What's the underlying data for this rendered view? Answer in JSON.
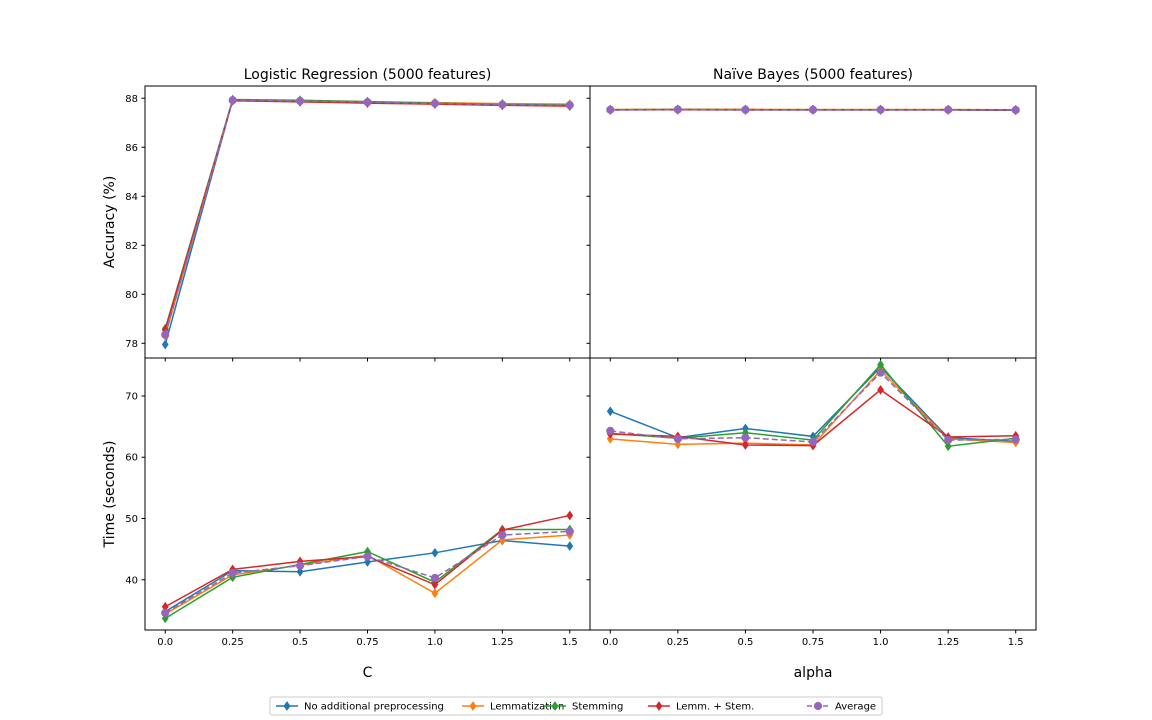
{
  "chart_data": {
    "type": "line",
    "legend": {
      "placement": "bottom-center",
      "entries": [
        "No additional preprocessing",
        "Lemmatization",
        "Stemming",
        "Lemm. + Stem.",
        "Average"
      ]
    },
    "series_styles": [
      {
        "name": "No additional preprocessing",
        "color": "#1f77b4",
        "marker": "diamond",
        "dash": false
      },
      {
        "name": "Lemmatization",
        "color": "#ff7f0e",
        "marker": "diamond",
        "dash": false
      },
      {
        "name": "Stemming",
        "color": "#2ca02c",
        "marker": "diamond",
        "dash": false
      },
      {
        "name": "Lemm. + Stem.",
        "color": "#d62728",
        "marker": "diamond",
        "dash": false
      },
      {
        "name": "Average",
        "color": "#9467bd",
        "marker": "circle",
        "dash": true
      }
    ],
    "panels": [
      {
        "id": "lr-accuracy",
        "title": "Logistic Regression (5000 features)",
        "ylabel": "Accuracy (%)",
        "xlabel": "",
        "ylim": [
          77.4,
          88.5
        ],
        "yticks": [
          78,
          80,
          82,
          84,
          86,
          88
        ],
        "x": [
          0.0,
          0.25,
          0.5,
          0.75,
          1.0,
          1.25,
          1.5
        ],
        "series": [
          {
            "name": "No additional preprocessing",
            "values": [
              77.95,
              87.92,
              87.88,
              87.83,
              87.78,
              87.73,
              87.72
            ]
          },
          {
            "name": "Lemmatization",
            "values": [
              78.3,
              87.93,
              87.9,
              87.86,
              87.82,
              87.78,
              87.76
            ]
          },
          {
            "name": "Stemming",
            "values": [
              78.6,
              87.95,
              87.92,
              87.86,
              87.8,
              87.75,
              87.72
            ]
          },
          {
            "name": "Lemm. + Stem.",
            "values": [
              78.55,
              87.9,
              87.85,
              87.8,
              87.76,
              87.71,
              87.68
            ]
          },
          {
            "name": "Average",
            "values": [
              78.35,
              87.92,
              87.89,
              87.84,
              87.79,
              87.74,
              87.72
            ]
          }
        ]
      },
      {
        "id": "nb-accuracy",
        "title": "Naïve Bayes (5000 features)",
        "ylabel": "",
        "xlabel": "",
        "ylim": [
          77.4,
          88.5
        ],
        "yticks": [
          78,
          80,
          82,
          84,
          86,
          88
        ],
        "x": [
          0.0,
          0.25,
          0.5,
          0.75,
          1.0,
          1.25,
          1.5
        ],
        "series": [
          {
            "name": "No additional preprocessing",
            "values": [
              87.52,
              87.53,
              87.52,
              87.52,
              87.52,
              87.52,
              87.51
            ]
          },
          {
            "name": "Lemmatization",
            "values": [
              87.54,
              87.55,
              87.55,
              87.54,
              87.54,
              87.54,
              87.53
            ]
          },
          {
            "name": "Stemming",
            "values": [
              87.53,
              87.54,
              87.53,
              87.53,
              87.53,
              87.53,
              87.52
            ]
          },
          {
            "name": "Lemm. + Stem.",
            "values": [
              87.53,
              87.53,
              87.53,
              87.53,
              87.53,
              87.53,
              87.52
            ]
          },
          {
            "name": "Average",
            "values": [
              87.53,
              87.54,
              87.53,
              87.53,
              87.53,
              87.53,
              87.52
            ]
          }
        ]
      },
      {
        "id": "lr-time",
        "title": "",
        "ylabel": "Time (seconds)",
        "xlabel": "C",
        "ylim": [
          31.8,
          76.2
        ],
        "yticks": [
          40,
          50,
          60,
          70
        ],
        "x": [
          0.0,
          0.25,
          0.5,
          0.75,
          1.0,
          1.25,
          1.5
        ],
        "series": [
          {
            "name": "No additional preprocessing",
            "values": [
              34.8,
              41.5,
              41.3,
              42.9,
              44.4,
              46.4,
              45.5
            ]
          },
          {
            "name": "Lemmatization",
            "values": [
              34.4,
              40.8,
              42.4,
              44.0,
              37.8,
              46.5,
              47.3
            ]
          },
          {
            "name": "Stemming",
            "values": [
              33.7,
              40.4,
              42.5,
              44.6,
              39.6,
              48.2,
              48.2
            ]
          },
          {
            "name": "Lemm. + Stem.",
            "values": [
              35.6,
              41.7,
              43.0,
              43.8,
              39.2,
              48.1,
              50.5
            ]
          },
          {
            "name": "Average",
            "values": [
              34.6,
              41.1,
              42.3,
              43.8,
              40.3,
              47.3,
              47.9
            ]
          }
        ]
      },
      {
        "id": "nb-time",
        "title": "",
        "ylabel": "",
        "xlabel": "alpha",
        "ylim": [
          31.8,
          76.2
        ],
        "yticks": [
          40,
          50,
          60,
          70
        ],
        "x": [
          0.0,
          0.25,
          0.5,
          0.75,
          1.0,
          1.25,
          1.5
        ],
        "series": [
          {
            "name": "No additional preprocessing",
            "values": [
              67.5,
              63.2,
              64.7,
              63.4,
              74.7,
              63.2,
              62.6
            ]
          },
          {
            "name": "Lemmatization",
            "values": [
              63.0,
              62.1,
              62.3,
              62.0,
              74.2,
              63.0,
              62.4
            ]
          },
          {
            "name": "Stemming",
            "values": [
              63.9,
              63.1,
              64.0,
              62.8,
              75.1,
              61.8,
              63.1
            ]
          },
          {
            "name": "Lemm. + Stem.",
            "values": [
              63.8,
              63.4,
              62.0,
              61.9,
              71.0,
              63.3,
              63.5
            ]
          },
          {
            "name": "Average",
            "values": [
              64.3,
              63.0,
              63.2,
              62.5,
              73.8,
              62.8,
              62.9
            ]
          }
        ]
      }
    ],
    "xticks": [
      0.0,
      0.25,
      0.5,
      0.75,
      1.0,
      1.25,
      1.5
    ],
    "xtick_labels": [
      "0.0",
      "0.25",
      "0.5",
      "0.75",
      "1.0",
      "1.25",
      "1.5"
    ],
    "xlim": [
      -0.075,
      1.575
    ],
    "grid": false
  }
}
